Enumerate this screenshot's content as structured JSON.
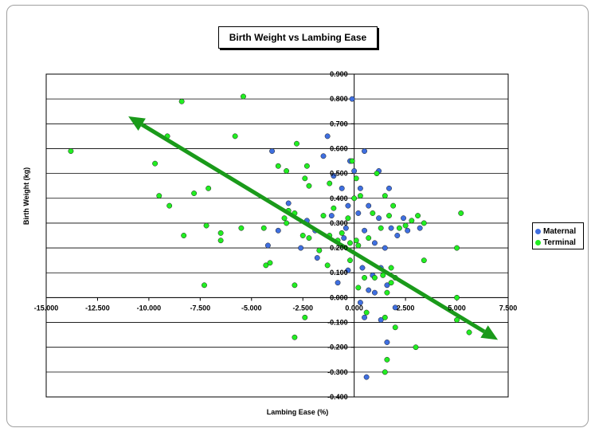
{
  "chart_data": {
    "type": "scatter",
    "title": "Birth Weight vs Lambing Ease",
    "xlabel": "Lambing Ease (%)",
    "ylabel": "Birth Weight (kg)",
    "xlim": [
      -15,
      7.5
    ],
    "ylim": [
      -0.4,
      0.9
    ],
    "x_ticks": [
      "-15.000",
      "-12.500",
      "-10.000",
      "-7.500",
      "-5.000",
      "-2.500",
      "0.000",
      "2.500",
      "5.000",
      "7.500"
    ],
    "y_ticks": [
      "-0.400",
      "-0.300",
      "-0.200",
      "-0.100",
      "0.000",
      "0.100",
      "0.200",
      "0.300",
      "0.400",
      "0.500",
      "0.600",
      "0.700",
      "0.800",
      "0.900"
    ],
    "grid": "horizontal",
    "legend_position": "right",
    "trend_arrow": {
      "color": "#1a9a1a",
      "from": [
        -11.0,
        0.73
      ],
      "to": [
        7.0,
        -0.17
      ]
    },
    "series": [
      {
        "name": "Maternal",
        "color": "#3f6fe0",
        "points": [
          [
            -0.1,
            0.8
          ],
          [
            -1.3,
            0.65
          ],
          [
            -0.2,
            0.55
          ],
          [
            0.0,
            0.51
          ],
          [
            0.5,
            0.59
          ],
          [
            1.2,
            0.51
          ],
          [
            -4.0,
            0.59
          ],
          [
            -1.5,
            0.57
          ],
          [
            -1.0,
            0.49
          ],
          [
            -0.6,
            0.44
          ],
          [
            -0.3,
            0.37
          ],
          [
            0.3,
            0.44
          ],
          [
            0.7,
            0.37
          ],
          [
            1.2,
            0.32
          ],
          [
            1.7,
            0.44
          ],
          [
            2.4,
            0.32
          ],
          [
            -3.2,
            0.38
          ],
          [
            -2.3,
            0.31
          ],
          [
            -1.9,
            0.27
          ],
          [
            -1.1,
            0.33
          ],
          [
            -0.4,
            0.28
          ],
          [
            0.5,
            0.27
          ],
          [
            1.0,
            0.22
          ],
          [
            1.5,
            0.2
          ],
          [
            2.1,
            0.25
          ],
          [
            2.6,
            0.27
          ],
          [
            3.2,
            0.28
          ],
          [
            -3.7,
            0.27
          ],
          [
            -4.2,
            0.21
          ],
          [
            -2.6,
            0.2
          ],
          [
            -1.8,
            0.16
          ],
          [
            -0.3,
            0.11
          ],
          [
            0.4,
            0.12
          ],
          [
            0.9,
            0.09
          ],
          [
            1.3,
            0.12
          ],
          [
            1.6,
            0.05
          ],
          [
            -0.8,
            0.06
          ],
          [
            0.7,
            0.03
          ],
          [
            1.0,
            0.02
          ],
          [
            0.3,
            -0.02
          ],
          [
            0.5,
            -0.08
          ],
          [
            1.3,
            -0.09
          ],
          [
            2.0,
            -0.04
          ],
          [
            1.6,
            -0.18
          ],
          [
            0.6,
            -0.32
          ],
          [
            -0.5,
            0.24
          ],
          [
            0.2,
            0.34
          ],
          [
            1.8,
            0.28
          ]
        ]
      },
      {
        "name": "Terminal",
        "color": "#22ee22",
        "points": [
          [
            -13.8,
            0.59
          ],
          [
            -8.4,
            0.79
          ],
          [
            -5.4,
            0.81
          ],
          [
            -9.1,
            0.65
          ],
          [
            -5.8,
            0.65
          ],
          [
            -9.7,
            0.54
          ],
          [
            -9.5,
            0.41
          ],
          [
            -9.0,
            0.37
          ],
          [
            -7.8,
            0.42
          ],
          [
            -7.1,
            0.44
          ],
          [
            -8.3,
            0.25
          ],
          [
            -7.2,
            0.29
          ],
          [
            -6.5,
            0.26
          ],
          [
            -6.5,
            0.23
          ],
          [
            -5.5,
            0.28
          ],
          [
            -7.3,
            0.05
          ],
          [
            -2.8,
            0.62
          ],
          [
            -3.7,
            0.53
          ],
          [
            -3.3,
            0.51
          ],
          [
            -2.3,
            0.53
          ],
          [
            -2.2,
            0.45
          ],
          [
            -1.2,
            0.46
          ],
          [
            -0.1,
            0.55
          ],
          [
            0.1,
            0.48
          ],
          [
            1.1,
            0.5
          ],
          [
            -2.4,
            0.48
          ],
          [
            -3.2,
            0.35
          ],
          [
            -2.9,
            0.34
          ],
          [
            -1.5,
            0.33
          ],
          [
            -1.0,
            0.36
          ],
          [
            -0.3,
            0.32
          ],
          [
            0.3,
            0.41
          ],
          [
            0.9,
            0.34
          ],
          [
            1.5,
            0.41
          ],
          [
            1.9,
            0.37
          ],
          [
            -4.4,
            0.28
          ],
          [
            -3.4,
            0.32
          ],
          [
            -3.3,
            0.3
          ],
          [
            -2.5,
            0.25
          ],
          [
            -2.2,
            0.24
          ],
          [
            -1.7,
            0.19
          ],
          [
            -1.2,
            0.25
          ],
          [
            -0.8,
            0.23
          ],
          [
            -0.2,
            0.22
          ],
          [
            0.2,
            0.21
          ],
          [
            0.7,
            0.24
          ],
          [
            1.3,
            0.28
          ],
          [
            1.7,
            0.33
          ],
          [
            2.2,
            0.28
          ],
          [
            2.8,
            0.31
          ],
          [
            3.1,
            0.33
          ],
          [
            3.4,
            0.3
          ],
          [
            5.2,
            0.34
          ],
          [
            -4.3,
            0.13
          ],
          [
            -4.1,
            0.14
          ],
          [
            -2.9,
            0.05
          ],
          [
            -1.3,
            0.13
          ],
          [
            -0.2,
            0.15
          ],
          [
            0.5,
            0.08
          ],
          [
            1.0,
            0.08
          ],
          [
            1.4,
            0.09
          ],
          [
            1.8,
            0.12
          ],
          [
            2.0,
            0.08
          ],
          [
            3.4,
            0.15
          ],
          [
            5.0,
            0.2
          ],
          [
            0.2,
            0.04
          ],
          [
            1.6,
            0.02
          ],
          [
            1.8,
            0.06
          ],
          [
            5.0,
            0.0
          ],
          [
            5.0,
            -0.09
          ],
          [
            5.6,
            -0.14
          ],
          [
            0.6,
            -0.06
          ],
          [
            1.5,
            -0.08
          ],
          [
            2.0,
            -0.12
          ],
          [
            3.0,
            -0.2
          ],
          [
            -2.4,
            -0.08
          ],
          [
            -2.9,
            -0.16
          ],
          [
            1.6,
            -0.25
          ],
          [
            1.5,
            -0.3
          ],
          [
            0.0,
            0.4
          ],
          [
            0.1,
            0.23
          ],
          [
            -0.6,
            0.26
          ],
          [
            2.5,
            0.29
          ]
        ]
      }
    ]
  }
}
